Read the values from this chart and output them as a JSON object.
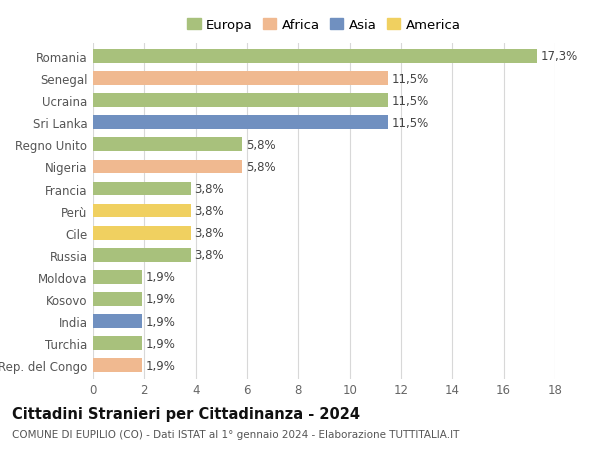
{
  "countries": [
    "Romania",
    "Senegal",
    "Ucraina",
    "Sri Lanka",
    "Regno Unito",
    "Nigeria",
    "Francia",
    "Perù",
    "Cile",
    "Russia",
    "Moldova",
    "Kosovo",
    "India",
    "Turchia",
    "Rep. del Congo"
  ],
  "values": [
    17.3,
    11.5,
    11.5,
    11.5,
    5.8,
    5.8,
    3.8,
    3.8,
    3.8,
    3.8,
    1.9,
    1.9,
    1.9,
    1.9,
    1.9
  ],
  "labels": [
    "17,3%",
    "11,5%",
    "11,5%",
    "11,5%",
    "5,8%",
    "5,8%",
    "3,8%",
    "3,8%",
    "3,8%",
    "3,8%",
    "1,9%",
    "1,9%",
    "1,9%",
    "1,9%",
    "1,9%"
  ],
  "continents": [
    "Europa",
    "Africa",
    "Europa",
    "Asia",
    "Europa",
    "Africa",
    "Europa",
    "America",
    "America",
    "Europa",
    "Europa",
    "Europa",
    "Asia",
    "Europa",
    "Africa"
  ],
  "colors": {
    "Europa": "#a8c17c",
    "Africa": "#f0b990",
    "Asia": "#7090c0",
    "America": "#f0d060"
  },
  "legend_order": [
    "Europa",
    "Africa",
    "Asia",
    "America"
  ],
  "title": "Cittadini Stranieri per Cittadinanza - 2024",
  "subtitle": "COMUNE DI EUPILIO (CO) - Dati ISTAT al 1° gennaio 2024 - Elaborazione TUTTITALIA.IT",
  "xlim": [
    0,
    18
  ],
  "xticks": [
    0,
    2,
    4,
    6,
    8,
    10,
    12,
    14,
    16,
    18
  ],
  "background_color": "#ffffff",
  "grid_color": "#d8d8d8",
  "bar_height": 0.62,
  "label_fontsize": 8.5,
  "title_fontsize": 10.5,
  "subtitle_fontsize": 7.5,
  "ytick_fontsize": 8.5,
  "xtick_fontsize": 8.5,
  "legend_fontsize": 9.5
}
